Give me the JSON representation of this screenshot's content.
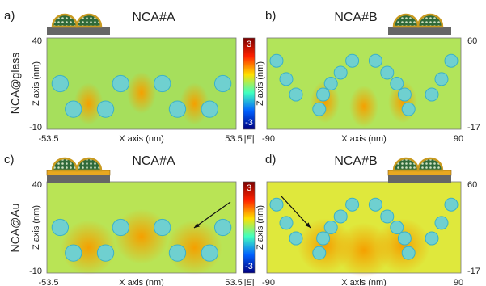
{
  "row_labels": [
    "NCA@glass",
    "NCA@Au"
  ],
  "colorbar": {
    "max": "3",
    "min": "-3",
    "label": "|E|"
  },
  "panels": [
    {
      "label": "a)",
      "title": "NCA#A",
      "x_axis": {
        "label": "X axis (nm)",
        "ticks": [
          "-53.5",
          "53.5"
        ]
      },
      "y_axis": {
        "label": "Z axis (nm)",
        "ticks": [
          "40",
          "-10"
        ]
      }
    },
    {
      "label": "b)",
      "title": "NCA#B",
      "x_axis": {
        "label": "X axis (nm)",
        "ticks": [
          "-90",
          "90"
        ]
      },
      "y_axis": {
        "label": "Z axis (nm)",
        "ticks": [
          "60",
          "-17"
        ]
      }
    },
    {
      "label": "c)",
      "title": "NCA#A",
      "x_axis": {
        "label": "X axis (nm)",
        "ticks": [
          "-53.5",
          "53.5"
        ]
      },
      "y_axis": {
        "label": "Z axis (nm)",
        "ticks": [
          "40",
          "-10"
        ]
      }
    },
    {
      "label": "d)",
      "title": "NCA#B",
      "x_axis": {
        "label": "X axis (nm)",
        "ticks": [
          "-90",
          "90"
        ]
      },
      "y_axis": {
        "label": "Z axis (nm)",
        "ticks": [
          "60",
          "-17"
        ]
      }
    }
  ]
}
